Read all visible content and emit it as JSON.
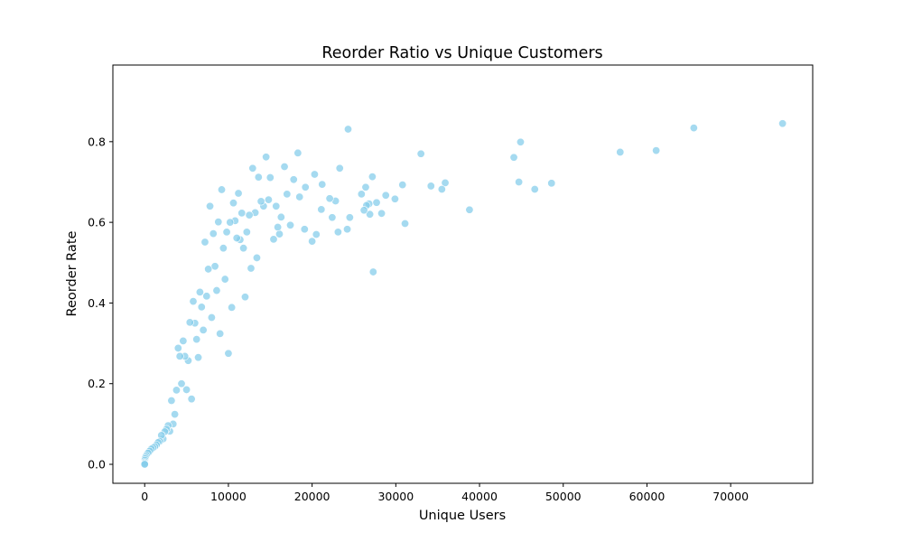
{
  "chart_data": {
    "type": "scatter",
    "title": "Reorder Ratio vs Unique Customers",
    "xlabel": "Unique Users",
    "ylabel": "Reorder Rate",
    "xlim": [
      -3800,
      79800
    ],
    "ylim": [
      -0.047,
      0.99
    ],
    "xticks": [
      0,
      10000,
      20000,
      30000,
      40000,
      50000,
      60000,
      70000
    ],
    "xtick_labels": [
      "0",
      "10000",
      "20000",
      "30000",
      "40000",
      "50000",
      "60000",
      "70000"
    ],
    "yticks": [
      0.0,
      0.2,
      0.4,
      0.6,
      0.8
    ],
    "ytick_labels": [
      "0.0",
      "0.2",
      "0.4",
      "0.6",
      "0.8"
    ],
    "grid": false,
    "legend": "none",
    "marker_color": "#87CEEB",
    "marker_edge_color": "#ffffff",
    "series": [
      {
        "x": [
          76200,
          65600,
          61100,
          56800,
          48600,
          46600,
          44900,
          44700,
          44100,
          38800,
          35900,
          35500,
          34200,
          33000,
          31100,
          30800,
          29900,
          28800,
          28300,
          27700,
          27300,
          27200,
          26900,
          26800,
          26500,
          26400,
          26200,
          25900,
          24500,
          24300,
          24200,
          23300,
          23100,
          22800,
          22400,
          22100,
          21200,
          21100,
          20500,
          20300,
          20000,
          19200,
          19100,
          18500,
          18300,
          17800,
          17400,
          17000,
          16700,
          16300,
          16100,
          15900,
          15700,
          15400,
          15000,
          14800,
          14500,
          14200,
          13900,
          13600,
          13400,
          13200,
          12900,
          12700,
          12500,
          12200,
          12000,
          11800,
          11600,
          11400,
          11200,
          11000,
          10800,
          10600,
          10400,
          10200,
          10000,
          9800,
          9600,
          9400,
          9200,
          9000,
          8800,
          8600,
          8400,
          8200,
          8000,
          7800,
          7600,
          7400,
          7200,
          7000,
          6800,
          6600,
          6400,
          6200,
          6000,
          5800,
          5600,
          5400,
          5200,
          5000,
          4800,
          4600,
          4400,
          4200,
          4000,
          3800,
          3600,
          3400,
          3200,
          3000,
          2800,
          2600,
          2400,
          2200,
          2000,
          1800,
          1600,
          1400,
          1200,
          1000,
          800,
          600,
          400,
          200,
          100,
          50,
          20,
          10,
          5,
          2,
          1
        ],
        "y": [
          0.845,
          0.834,
          0.778,
          0.774,
          0.697,
          0.682,
          0.799,
          0.7,
          0.761,
          0.631,
          0.698,
          0.682,
          0.69,
          0.77,
          0.597,
          0.693,
          0.658,
          0.667,
          0.622,
          0.649,
          0.477,
          0.713,
          0.62,
          0.646,
          0.642,
          0.687,
          0.63,
          0.67,
          0.612,
          0.831,
          0.583,
          0.734,
          0.576,
          0.653,
          0.612,
          0.659,
          0.694,
          0.632,
          0.57,
          0.719,
          0.553,
          0.687,
          0.583,
          0.663,
          0.772,
          0.706,
          0.593,
          0.67,
          0.738,
          0.613,
          0.571,
          0.588,
          0.64,
          0.558,
          0.711,
          0.656,
          0.762,
          0.64,
          0.652,
          0.712,
          0.512,
          0.624,
          0.734,
          0.486,
          0.618,
          0.576,
          0.415,
          0.536,
          0.623,
          0.557,
          0.672,
          0.561,
          0.604,
          0.648,
          0.389,
          0.6,
          0.275,
          0.576,
          0.459,
          0.536,
          0.681,
          0.324,
          0.601,
          0.431,
          0.491,
          0.572,
          0.364,
          0.64,
          0.484,
          0.417,
          0.551,
          0.333,
          0.39,
          0.427,
          0.265,
          0.31,
          0.35,
          0.404,
          0.162,
          0.352,
          0.257,
          0.185,
          0.268,
          0.306,
          0.2,
          0.268,
          0.288,
          0.184,
          0.124,
          0.1,
          0.158,
          0.082,
          0.096,
          0.087,
          0.081,
          0.063,
          0.072,
          0.057,
          0.054,
          0.048,
          0.044,
          0.041,
          0.038,
          0.033,
          0.028,
          0.022,
          0.018,
          0.014,
          0.01,
          0.006,
          0.003,
          0.001,
          0.0
        ]
      }
    ]
  }
}
